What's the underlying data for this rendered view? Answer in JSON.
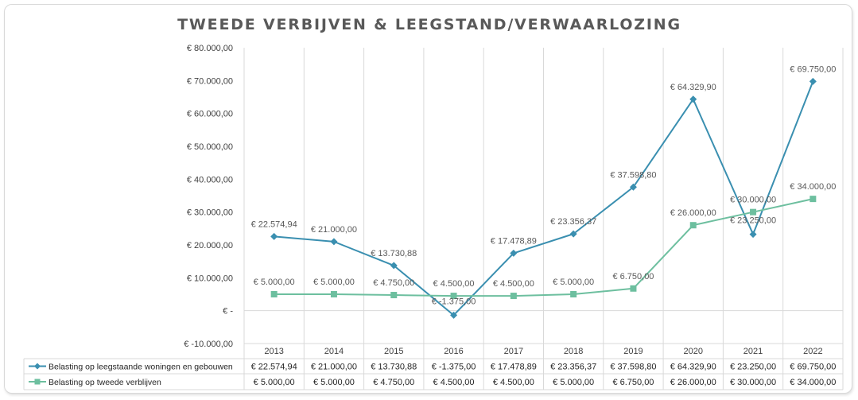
{
  "chart_data": {
    "type": "line",
    "title": "TWEEDE VERBIJVEN & LEEGSTAND/VERWAARLOZING",
    "categories": [
      "2013",
      "2014",
      "2015",
      "2016",
      "2017",
      "2018",
      "2019",
      "2020",
      "2021",
      "2022"
    ],
    "ylim": [
      -10000,
      80000
    ],
    "yticks": [
      -10000,
      0,
      10000,
      20000,
      30000,
      40000,
      50000,
      60000,
      70000,
      80000
    ],
    "ytick_labels": [
      "€ -10.000,00",
      "€ -",
      "€ 10.000,00",
      "€ 20.000,00",
      "€ 30.000,00",
      "€ 40.000,00",
      "€ 50.000,00",
      "€ 60.000,00",
      "€ 70.000,00",
      "€ 80.000,00"
    ],
    "grid": "vertical",
    "legend": "data-table",
    "series": [
      {
        "name": "Belasting op leegstaande woningen en gebouwen",
        "color": "#3a8fb0",
        "marker": "diamond",
        "values": [
          22574.94,
          21000,
          13730.88,
          -1375,
          17478.89,
          23356.37,
          37598.8,
          64329.9,
          23250,
          69750
        ],
        "labels": [
          "€ 22.574,94",
          "€ 21.000,00",
          "€ 13.730,88",
          "€ -1.375,00",
          "€ 17.478,89",
          "€ 23.356,37",
          "€ 37.598,80",
          "€ 64.329,90",
          "€ 23.250,00",
          "€ 69.750,00"
        ]
      },
      {
        "name": "Belasting op tweede verblijven",
        "color": "#6dbf9f",
        "marker": "square",
        "values": [
          5000,
          5000,
          4750,
          4500,
          4500,
          5000,
          6750,
          26000,
          30000,
          34000
        ],
        "labels": [
          "€ 5.000,00",
          "€ 5.000,00",
          "€ 4.750,00",
          "€ 4.500,00",
          "€ 4.500,00",
          "€ 5.000,00",
          "€ 6.750,00",
          "€ 26.000,00",
          "€ 30.000,00",
          "€ 34.000,00"
        ]
      }
    ]
  }
}
